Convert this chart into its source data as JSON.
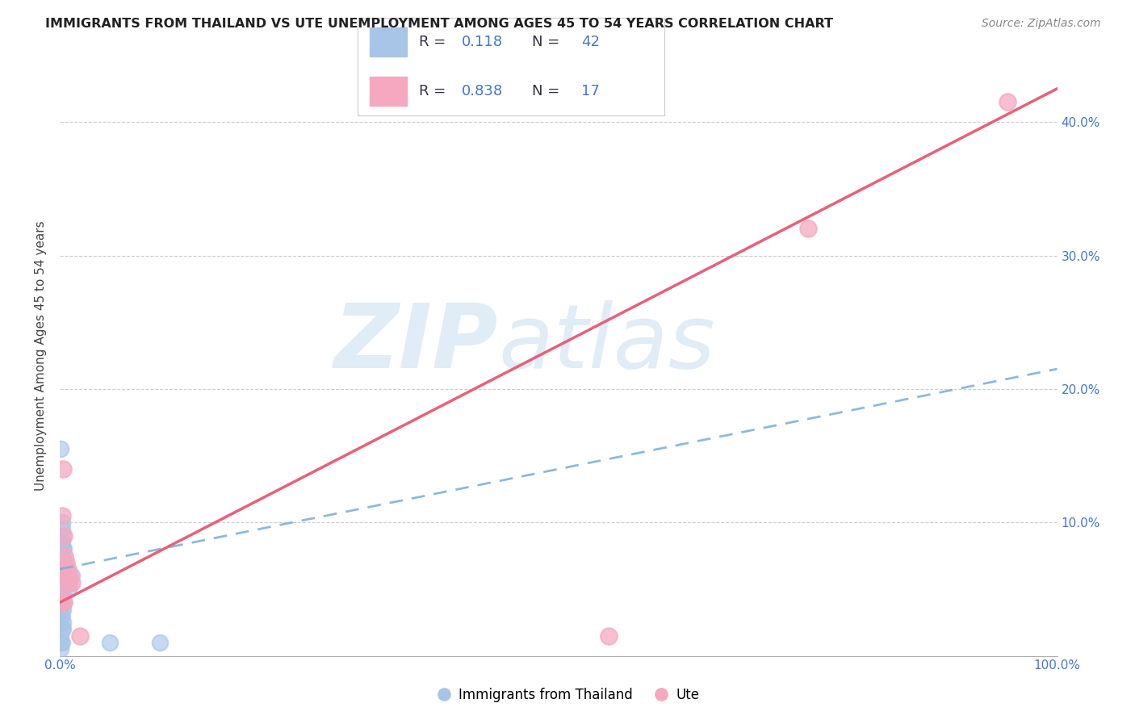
{
  "title": "IMMIGRANTS FROM THAILAND VS UTE UNEMPLOYMENT AMONG AGES 45 TO 54 YEARS CORRELATION CHART",
  "source": "Source: ZipAtlas.com",
  "ylabel": "Unemployment Among Ages 45 to 54 years",
  "xlim": [
    0,
    1.0
  ],
  "ylim": [
    0,
    0.45
  ],
  "xticks": [
    0.0,
    0.1,
    0.2,
    0.3,
    0.4,
    0.5,
    0.6,
    0.7,
    0.8,
    0.9,
    1.0
  ],
  "xtick_labels": [
    "0.0%",
    "",
    "",
    "",
    "",
    "",
    "",
    "",
    "",
    "",
    "100.0%"
  ],
  "yticks": [
    0.0,
    0.1,
    0.2,
    0.3,
    0.4
  ],
  "ytick_labels_right": [
    "",
    "10.0%",
    "20.0%",
    "30.0%",
    "40.0%"
  ],
  "blue_r": 0.118,
  "blue_n": 42,
  "pink_r": 0.838,
  "pink_n": 17,
  "blue_dot_color": "#a8c5e8",
  "pink_dot_color": "#f5a8c0",
  "blue_line_color": "#7aadd4",
  "pink_line_color": "#e8607a",
  "watermark_zip": "ZIP",
  "watermark_atlas": "atlas",
  "background_color": "#ffffff",
  "legend_label_blue": "Immigrants from Thailand",
  "legend_label_pink": "Ute",
  "blue_x": [
    0.001,
    0.001,
    0.001,
    0.002,
    0.002,
    0.002,
    0.002,
    0.003,
    0.003,
    0.003,
    0.004,
    0.004,
    0.004,
    0.005,
    0.005,
    0.006,
    0.006,
    0.007,
    0.008,
    0.009,
    0.01,
    0.012,
    0.001,
    0.001,
    0.002,
    0.002,
    0.003,
    0.003,
    0.004,
    0.001,
    0.001,
    0.001,
    0.002,
    0.002,
    0.003,
    0.003,
    0.001,
    0.001,
    0.002,
    0.001,
    0.05,
    0.1
  ],
  "blue_y": [
    0.155,
    0.085,
    0.075,
    0.1,
    0.095,
    0.085,
    0.075,
    0.09,
    0.08,
    0.065,
    0.08,
    0.07,
    0.06,
    0.07,
    0.06,
    0.065,
    0.055,
    0.055,
    0.055,
    0.05,
    0.055,
    0.06,
    0.05,
    0.04,
    0.045,
    0.04,
    0.045,
    0.035,
    0.04,
    0.035,
    0.03,
    0.025,
    0.03,
    0.02,
    0.025,
    0.02,
    0.015,
    0.01,
    0.01,
    0.005,
    0.01,
    0.01
  ],
  "pink_x": [
    0.002,
    0.003,
    0.004,
    0.005,
    0.006,
    0.007,
    0.008,
    0.01,
    0.012,
    0.002,
    0.003,
    0.004,
    0.008,
    0.55,
    0.75,
    0.95,
    0.02
  ],
  "pink_y": [
    0.105,
    0.14,
    0.09,
    0.075,
    0.07,
    0.06,
    0.055,
    0.06,
    0.055,
    0.045,
    0.04,
    0.04,
    0.065,
    0.015,
    0.32,
    0.415,
    0.015
  ],
  "blue_trend_x": [
    0.0,
    1.0
  ],
  "blue_trend_y": [
    0.065,
    0.215
  ],
  "pink_trend_x": [
    0.0,
    1.0
  ],
  "pink_trend_y": [
    0.04,
    0.425
  ],
  "label_color_blue": "#4477cc",
  "label_color_pink": "#cc4466",
  "label_color_dark": "#333344",
  "grid_color": "#cccccc",
  "spine_color": "#aaaaaa"
}
